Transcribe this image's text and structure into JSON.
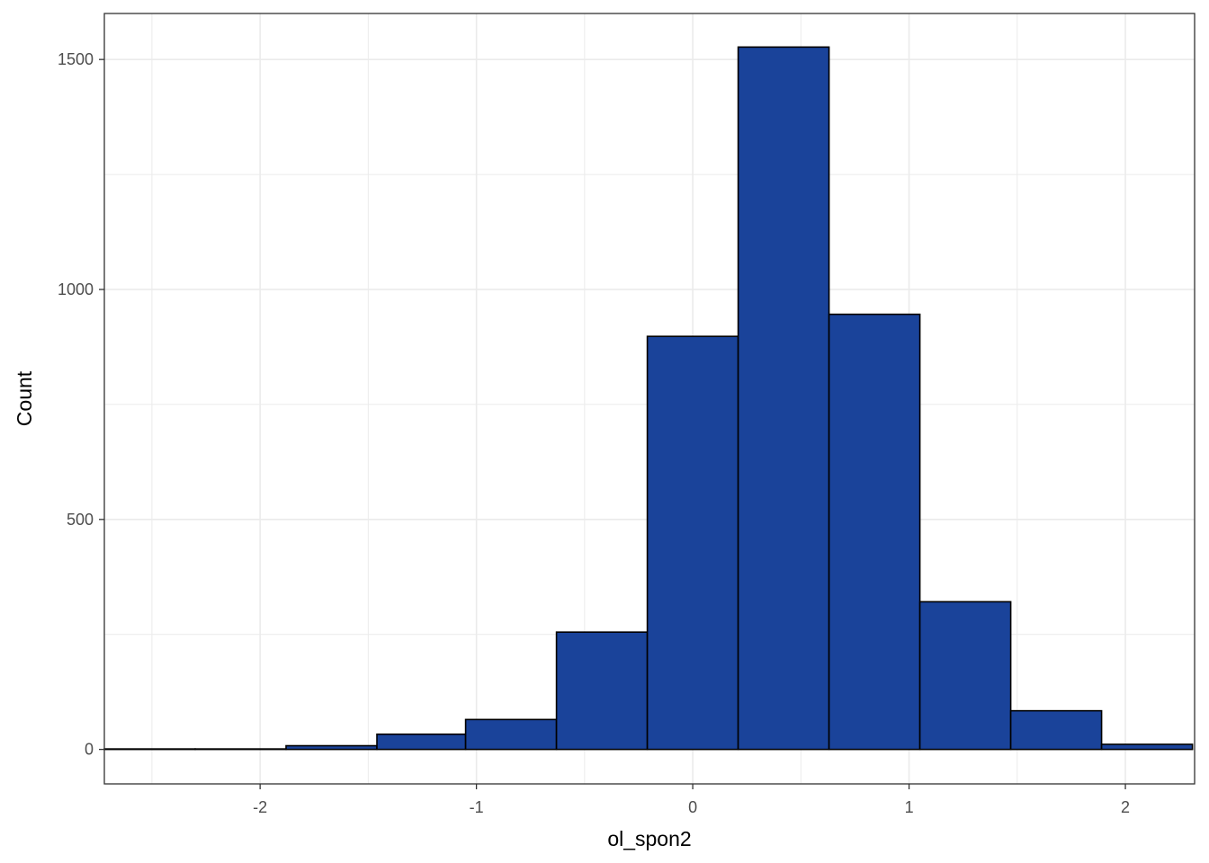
{
  "chart_data": {
    "type": "histogram",
    "title": "",
    "xlabel": "ol_spon2",
    "ylabel": "Count",
    "xlim": [
      -2.72,
      2.32
    ],
    "ylim": [
      -75,
      1600
    ],
    "x_ticks": [
      -2,
      -1,
      0,
      1,
      2
    ],
    "x_tick_labels": [
      "-2",
      "-1",
      "0",
      "1",
      "2"
    ],
    "y_ticks": [
      0,
      500,
      1000,
      1500
    ],
    "y_tick_labels": [
      "0",
      "500",
      "1000",
      "1500"
    ],
    "x_minor_ticks": [
      -2.5,
      -1.5,
      -0.5,
      0.5,
      1.5
    ],
    "y_minor_ticks": [
      250,
      750,
      1250
    ],
    "bins": [
      {
        "x0": -2.72,
        "x1": -2.3,
        "count": 1
      },
      {
        "x0": -2.3,
        "x1": -1.88,
        "count": 1
      },
      {
        "x0": -1.88,
        "x1": -1.46,
        "count": 8
      },
      {
        "x0": -1.46,
        "x1": -1.05,
        "count": 33
      },
      {
        "x0": -1.05,
        "x1": -0.63,
        "count": 65
      },
      {
        "x0": -0.63,
        "x1": -0.21,
        "count": 255
      },
      {
        "x0": -0.21,
        "x1": 0.21,
        "count": 898
      },
      {
        "x0": 0.21,
        "x1": 0.63,
        "count": 1527
      },
      {
        "x0": 0.63,
        "x1": 1.05,
        "count": 946
      },
      {
        "x0": 1.05,
        "x1": 1.47,
        "count": 321
      },
      {
        "x0": 1.47,
        "x1": 1.89,
        "count": 84
      },
      {
        "x0": 1.89,
        "x1": 2.31,
        "count": 11
      }
    ],
    "bar_fill": "#1a439a",
    "bar_outline": "#000000",
    "grid": true,
    "grid_color": "#ebebeb",
    "panel_border": "#333333",
    "legend": "none"
  }
}
